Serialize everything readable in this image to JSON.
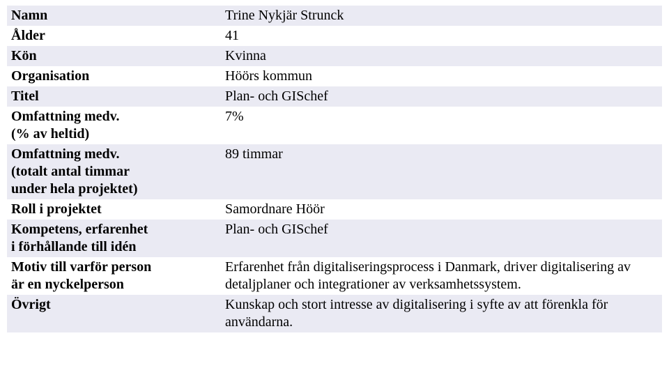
{
  "colors": {
    "stripe": "#eaeaf3",
    "background": "#ffffff",
    "text": "#000000"
  },
  "typography": {
    "family": "Times New Roman",
    "size_pt": 15,
    "label_weight": "bold"
  },
  "rows": [
    {
      "label": "Namn",
      "value": "Trine Nykjär Strunck",
      "striped": true
    },
    {
      "label": "Ålder",
      "value": "41",
      "striped": false
    },
    {
      "label": "Kön",
      "value": "Kvinna",
      "striped": true
    },
    {
      "label": "Organisation",
      "value": "Höörs kommun",
      "striped": false
    },
    {
      "label": "Titel",
      "value": "Plan- och GISchef",
      "striped": true
    },
    {
      "label": "Omfattning medv.\n(% av heltid)",
      "value": "7%",
      "striped": false
    },
    {
      "label": "Omfattning medv.\n(totalt antal timmar\nunder hela projektet)",
      "value": "89 timmar",
      "striped": true
    },
    {
      "label": "Roll i projektet",
      "value": "Samordnare Höör",
      "striped": false
    },
    {
      "label": "Kompetens, erfarenhet\ni förhållande till idén",
      "value": "Plan- och GISchef",
      "striped": true
    },
    {
      "label": "Motiv till varför person\när en nyckelperson",
      "value": "Erfarenhet från digitaliseringsprocess i Danmark, driver digitalisering av detaljplaner och integrationer av verksamhetssystem.",
      "striped": false
    },
    {
      "label": "Övrigt",
      "value": "Kunskap och stort intresse av digitalisering i syfte av att förenkla för användarna.",
      "striped": true
    }
  ]
}
